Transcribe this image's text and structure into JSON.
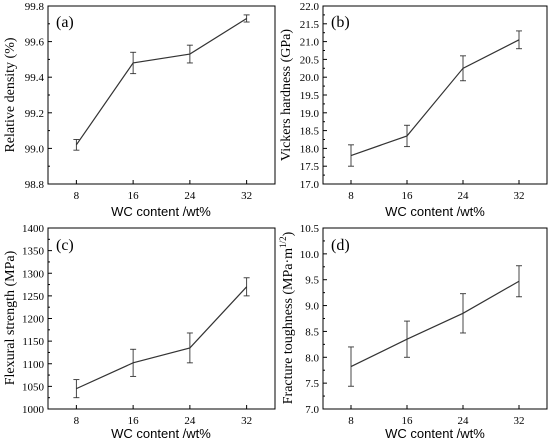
{
  "chart_data": [
    {
      "type": "line",
      "panel_label": "(a)",
      "categories": [
        "8",
        "16",
        "24",
        "32"
      ],
      "x": [
        8,
        16,
        24,
        32
      ],
      "values": [
        99.02,
        99.48,
        99.53,
        99.73
      ],
      "errors": [
        0.03,
        0.06,
        0.05,
        0.02
      ],
      "xlabel": "WC content /wt%",
      "ylabel": "Relative density (%)",
      "ylim": [
        98.8,
        99.8
      ],
      "yticks": [
        "98.8",
        "99.0",
        "99.2",
        "99.4",
        "99.6",
        "99.8"
      ],
      "ytick_values": [
        98.8,
        99.0,
        99.2,
        99.4,
        99.6,
        99.8
      ],
      "grid": false
    },
    {
      "type": "line",
      "panel_label": "(b)",
      "categories": [
        "8",
        "16",
        "24",
        "32"
      ],
      "x": [
        8,
        16,
        24,
        32
      ],
      "values": [
        17.8,
        18.35,
        20.25,
        21.05
      ],
      "errors": [
        0.3,
        0.3,
        0.35,
        0.25
      ],
      "xlabel": "WC content /wt%",
      "ylabel": "Vickers hardness (GPa)",
      "ylim": [
        17.0,
        22.0
      ],
      "yticks": [
        "17.0",
        "17.5",
        "18.0",
        "18.5",
        "19.0",
        "19.5",
        "20.0",
        "20.5",
        "21.0",
        "21.5",
        "22.0"
      ],
      "ytick_values": [
        17.0,
        17.5,
        18.0,
        18.5,
        19.0,
        19.5,
        20.0,
        20.5,
        21.0,
        21.5,
        22.0
      ],
      "grid": false
    },
    {
      "type": "line",
      "panel_label": "(c)",
      "categories": [
        "8",
        "16",
        "24",
        "32"
      ],
      "x": [
        8,
        16,
        24,
        32
      ],
      "values": [
        1045,
        1102,
        1135,
        1270
      ],
      "errors": [
        20,
        30,
        33,
        20
      ],
      "xlabel": "WC content /wt%",
      "ylabel": "Flexural strength (MPa)",
      "ylim": [
        1000,
        1400
      ],
      "yticks": [
        "1000",
        "1050",
        "1100",
        "1150",
        "1200",
        "1250",
        "1300",
        "1350",
        "1400"
      ],
      "ytick_values": [
        1000,
        1050,
        1100,
        1150,
        1200,
        1250,
        1300,
        1350,
        1400
      ],
      "grid": false
    },
    {
      "type": "line",
      "panel_label": "(d)",
      "categories": [
        "8",
        "16",
        "24",
        "32"
      ],
      "x": [
        8,
        16,
        24,
        32
      ],
      "values": [
        7.82,
        8.35,
        8.85,
        9.47
      ],
      "errors": [
        0.38,
        0.35,
        0.38,
        0.3
      ],
      "xlabel": "WC content /wt%",
      "ylabel": "Fracture toughness (MPa·m",
      "ylabel_sup": "1/2",
      "ylabel_close": ")",
      "ylim": [
        7.0,
        10.5
      ],
      "yticks": [
        "7.0",
        "7.5",
        "8.0",
        "8.5",
        "9.0",
        "9.5",
        "10.0",
        "10.5"
      ],
      "ytick_values": [
        7.0,
        7.5,
        8.0,
        8.5,
        9.0,
        9.5,
        10.0,
        10.5
      ],
      "grid": false
    }
  ]
}
